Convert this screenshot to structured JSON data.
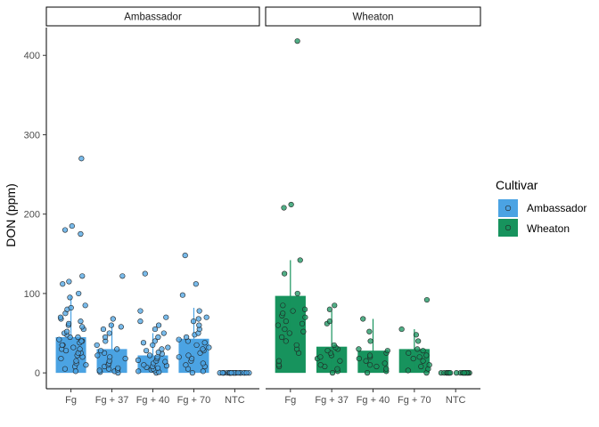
{
  "chart_data": {
    "type": "bar",
    "overlay": "jittered-points-with-range-lines",
    "ylabel": "DON (ppm)",
    "xlabel": "",
    "ylim": [
      -20,
      435
    ],
    "yticks": [
      0,
      100,
      200,
      300,
      400
    ],
    "categories": [
      "Fg",
      "Fg + 37",
      "Fg + 40",
      "Fg + 70",
      "NTC"
    ],
    "grid": false,
    "legend": {
      "title": "Cultivar",
      "position": "right"
    },
    "panels": [
      {
        "name": "Ambassador",
        "color": "#4ba3e3",
        "means": [
          45,
          30,
          22,
          43,
          0
        ],
        "range_low": [
          20,
          5,
          3,
          15,
          0
        ],
        "range_high": [
          98,
          62,
          50,
          82,
          0
        ],
        "points": [
          [
            2,
            5,
            8,
            10,
            12,
            15,
            18,
            20,
            22,
            25,
            25,
            28,
            30,
            30,
            32,
            35,
            35,
            38,
            40,
            40,
            42,
            45,
            45,
            48,
            50,
            52,
            55,
            58,
            60,
            62,
            65,
            68,
            70,
            75,
            80,
            82,
            85,
            95,
            100,
            112,
            115,
            122,
            175,
            180,
            185,
            270
          ],
          [
            0,
            1,
            2,
            3,
            4,
            5,
            6,
            8,
            10,
            12,
            15,
            18,
            20,
            22,
            25,
            28,
            30,
            35,
            40,
            45,
            50,
            55,
            58,
            60,
            68,
            122
          ],
          [
            0,
            1,
            2,
            3,
            4,
            5,
            6,
            7,
            8,
            9,
            10,
            12,
            14,
            15,
            16,
            18,
            20,
            22,
            24,
            26,
            28,
            30,
            32,
            35,
            38,
            40,
            45,
            50,
            55,
            60,
            65,
            70,
            78,
            125
          ],
          [
            0,
            2,
            5,
            8,
            10,
            12,
            15,
            18,
            20,
            22,
            25,
            28,
            30,
            32,
            35,
            38,
            40,
            42,
            45,
            48,
            50,
            55,
            60,
            65,
            68,
            70,
            78,
            98,
            112,
            148
          ],
          [
            0,
            0,
            0,
            0,
            0,
            0,
            0,
            0,
            0,
            0,
            0,
            0,
            0,
            0,
            0,
            0,
            0,
            0,
            0,
            0,
            0,
            0,
            0,
            0,
            0
          ]
        ]
      },
      {
        "name": "Wheaton",
        "color": "#17935d",
        "means": [
          97,
          33,
          28,
          30,
          0
        ],
        "range_low": [
          40,
          5,
          2,
          5,
          0
        ],
        "range_high": [
          142,
          78,
          68,
          55,
          0
        ],
        "points": [
          [
            8,
            10,
            15,
            25,
            30,
            35,
            40,
            45,
            50,
            52,
            55,
            60,
            62,
            65,
            70,
            72,
            75,
            78,
            80,
            85,
            100,
            125,
            142,
            208,
            212,
            418
          ],
          [
            0,
            2,
            5,
            8,
            10,
            15,
            18,
            20,
            22,
            25,
            28,
            30,
            32,
            35,
            62,
            65,
            80,
            85
          ],
          [
            0,
            2,
            5,
            8,
            10,
            12,
            15,
            18,
            20,
            22,
            25,
            28,
            30,
            40,
            52,
            68
          ],
          [
            0,
            3,
            5,
            8,
            10,
            15,
            18,
            20,
            22,
            25,
            28,
            30,
            40,
            48,
            55,
            92
          ],
          [
            0,
            0,
            0,
            0,
            0,
            0,
            0,
            0,
            0,
            0,
            0,
            0,
            0,
            0,
            0,
            0,
            0,
            0
          ]
        ]
      }
    ]
  }
}
